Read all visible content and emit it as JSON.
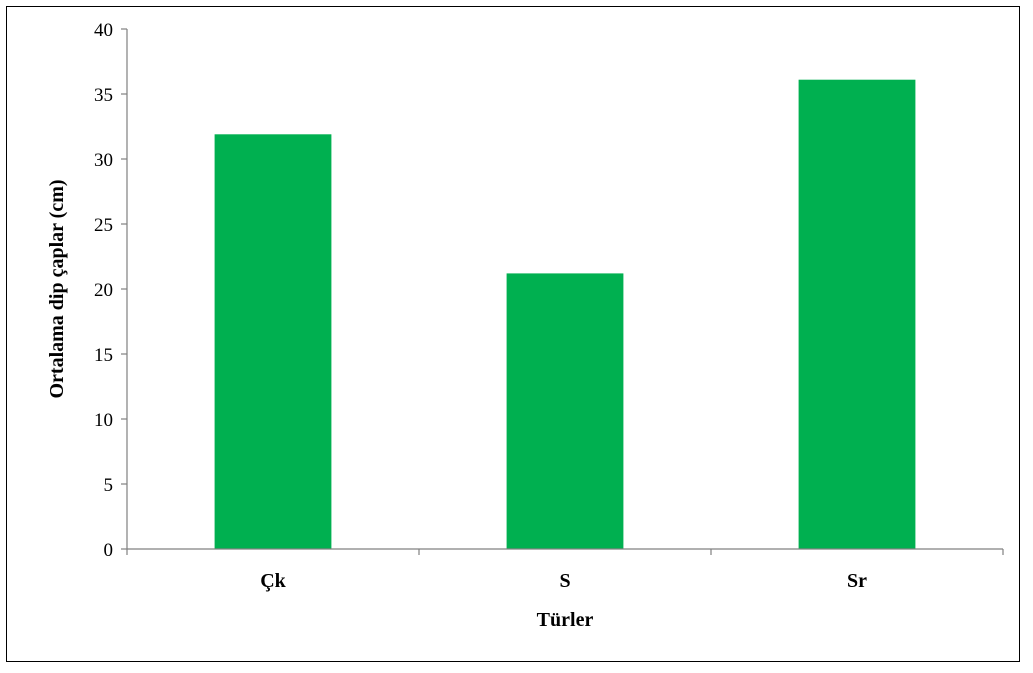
{
  "chart_data": {
    "type": "bar",
    "categories": [
      "Çk",
      "S",
      "Sr"
    ],
    "values": [
      31.9,
      21.2,
      36.1
    ],
    "xlabel": "Türler",
    "ylabel": "Ortalama dip çaplar (cm)",
    "ylim": [
      0,
      40
    ],
    "yticks": [
      0,
      5,
      10,
      15,
      20,
      25,
      30,
      35,
      40
    ],
    "bar_color": "#00B050",
    "grid": false,
    "legend": "none"
  }
}
